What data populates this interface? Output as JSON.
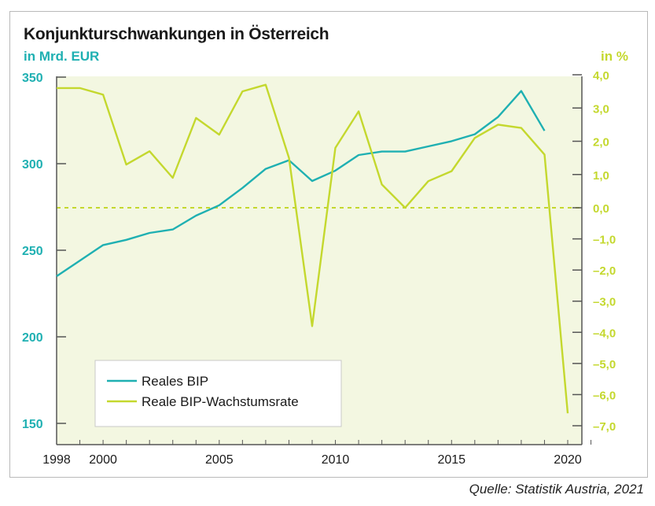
{
  "title": "Konjunkturschwankungen in Österreich",
  "unit_left": "in Mrd. EUR",
  "unit_right": "in %",
  "source": "Quelle: Statistik Austria, 2021",
  "colors": {
    "teal": "#1fb0b2",
    "lime": "#c4d82e",
    "plot_bg": "#f3f7e1",
    "axis": "#555555"
  },
  "chart_data": {
    "type": "line",
    "left_axis": {
      "ticks": [
        "150",
        "200",
        "250",
        "300",
        "350"
      ],
      "ylim": [
        150,
        350
      ]
    },
    "right_axis": {
      "ticks": [
        "4,0",
        "3,0",
        "2,0",
        "1,0",
        "0,0",
        "–1,0",
        "–2,0",
        "–3,0",
        "–4,0",
        "–5,0",
        "–6,0",
        "–7,0"
      ],
      "values": [
        4,
        3,
        2,
        1,
        0,
        -1,
        -2,
        -3,
        -4,
        -5,
        -6,
        -7
      ],
      "zero_line": "dashed"
    },
    "x_axis": {
      "ticks": [
        "1998",
        "2000",
        "2005",
        "2010",
        "2015",
        "2020"
      ],
      "xlim": [
        1998,
        2021
      ]
    },
    "series": [
      {
        "name": "Reales BIP",
        "axis": "left",
        "color": "#1fb0b2",
        "x": [
          1998,
          1999,
          2000,
          2001,
          2002,
          2003,
          2004,
          2005,
          2006,
          2007,
          2008,
          2009,
          2010,
          2011,
          2012,
          2013,
          2014,
          2015,
          2016,
          2017,
          2018,
          2019,
          2020
        ],
        "y": [
          235,
          244,
          253,
          256,
          260,
          262,
          270,
          276,
          286,
          297,
          302,
          290,
          296,
          305,
          307,
          307,
          310,
          313,
          317,
          327,
          342,
          319,
          null
        ]
      },
      {
        "name": "Reale BIP-Wachstumsrate",
        "axis": "right",
        "color": "#c4d82e",
        "x": [
          1998,
          1999,
          2000,
          2001,
          2002,
          2003,
          2004,
          2005,
          2006,
          2007,
          2008,
          2009,
          2010,
          2011,
          2012,
          2013,
          2014,
          2015,
          2016,
          2017,
          2018,
          2019,
          2020
        ],
        "y": [
          3.6,
          3.6,
          3.4,
          1.3,
          1.7,
          0.9,
          2.7,
          2.2,
          3.5,
          3.7,
          1.5,
          -3.8,
          1.8,
          2.9,
          0.7,
          0.0,
          0.8,
          1.1,
          2.1,
          2.5,
          2.4,
          1.6,
          -6.6
        ]
      }
    ],
    "legend": {
      "position": "bottom-left",
      "entries": [
        "Reales BIP",
        "Reale BIP-Wachstumsrate"
      ]
    },
    "grid": false
  }
}
